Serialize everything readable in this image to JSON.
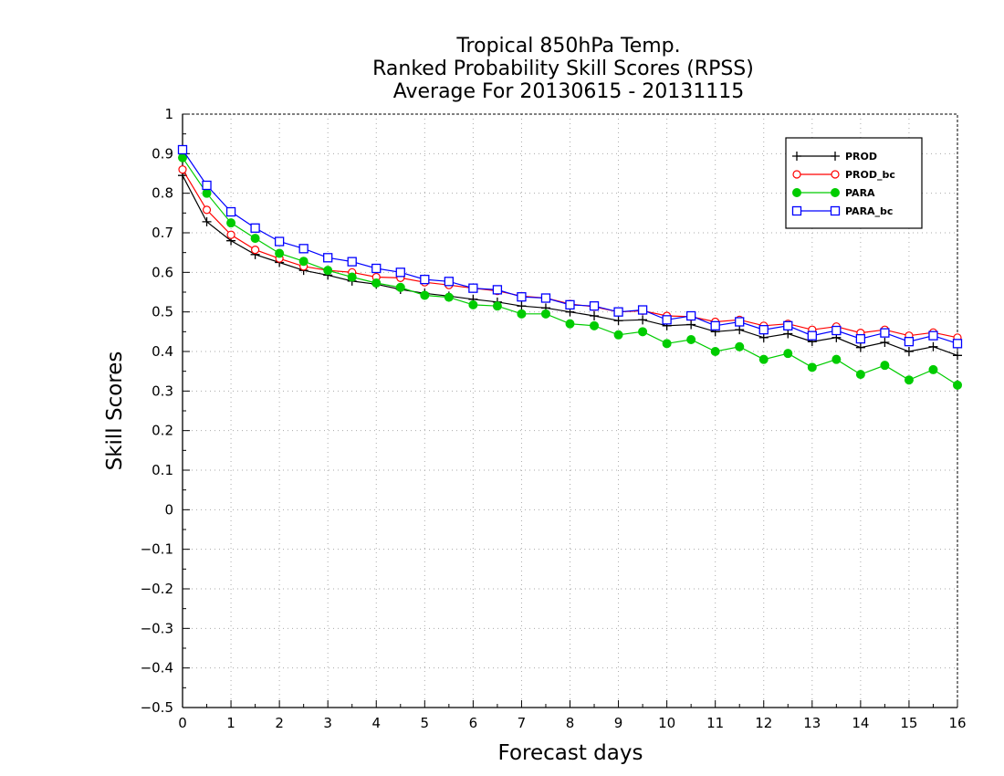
{
  "chart_data": {
    "type": "line",
    "title_lines": [
      "Tropical 850hPa Temp.",
      "Ranked Probability Skill Scores (RPSS)",
      "Average For 20130615 - 20131115"
    ],
    "xlabel": "Forecast days",
    "ylabel": "Skill Scores",
    "xlim": [
      0,
      16
    ],
    "ylim": [
      -0.5,
      1
    ],
    "x_ticks": [
      0,
      1,
      2,
      3,
      4,
      5,
      6,
      7,
      8,
      9,
      10,
      11,
      12,
      13,
      14,
      15,
      16
    ],
    "y_ticks": [
      -0.5,
      -0.4,
      -0.3,
      -0.2,
      -0.1,
      0,
      0.1,
      0.2,
      0.3,
      0.4,
      0.5,
      0.6,
      0.7,
      0.8,
      0.9,
      1
    ],
    "x_tick_labels": [
      "0",
      "1",
      "2",
      "3",
      "4",
      "5",
      "6",
      "7",
      "8",
      "9",
      "10",
      "11",
      "12",
      "13",
      "14",
      "15",
      "16"
    ],
    "y_tick_labels": [
      "−0.5",
      "−0.4",
      "−0.3",
      "−0.2",
      "−0.1",
      "0",
      "0.1",
      "0.2",
      "0.3",
      "0.4",
      "0.5",
      "0.6",
      "0.7",
      "0.8",
      "0.9",
      "1"
    ],
    "grid": true,
    "legend_position": "top-right",
    "x": [
      0,
      0.5,
      1,
      1.5,
      2,
      2.5,
      3,
      3.5,
      4,
      4.5,
      5,
      5.5,
      6,
      6.5,
      7,
      7.5,
      8,
      8.5,
      9,
      9.5,
      10,
      10.5,
      11,
      11.5,
      12,
      12.5,
      13,
      13.5,
      14,
      14.5,
      15,
      15.5,
      16
    ],
    "series": [
      {
        "name": "PROD",
        "color": "#000000",
        "marker": "plus",
        "values": [
          0.845,
          0.728,
          0.68,
          0.645,
          0.625,
          0.605,
          0.593,
          0.578,
          0.57,
          0.557,
          0.547,
          0.54,
          0.532,
          0.525,
          0.515,
          0.51,
          0.5,
          0.49,
          0.478,
          0.48,
          0.465,
          0.468,
          0.45,
          0.455,
          0.435,
          0.445,
          0.425,
          0.435,
          0.41,
          0.423,
          0.4,
          0.412,
          0.39
        ]
      },
      {
        "name": "PROD_bc",
        "color": "#ff0000",
        "marker": "circle-open",
        "values": [
          0.86,
          0.758,
          0.695,
          0.657,
          0.635,
          0.615,
          0.605,
          0.6,
          0.588,
          0.586,
          0.575,
          0.568,
          0.56,
          0.553,
          0.54,
          0.535,
          0.52,
          0.513,
          0.5,
          0.503,
          0.49,
          0.488,
          0.475,
          0.48,
          0.465,
          0.47,
          0.455,
          0.463,
          0.447,
          0.455,
          0.44,
          0.448,
          0.435
        ]
      },
      {
        "name": "PARA",
        "color": "#00cc00",
        "marker": "circle-filled",
        "values": [
          0.89,
          0.8,
          0.725,
          0.686,
          0.648,
          0.628,
          0.605,
          0.588,
          0.573,
          0.562,
          0.542,
          0.537,
          0.518,
          0.515,
          0.495,
          0.495,
          0.47,
          0.465,
          0.442,
          0.45,
          0.42,
          0.43,
          0.4,
          0.412,
          0.38,
          0.395,
          0.36,
          0.38,
          0.342,
          0.365,
          0.328,
          0.354,
          0.315
        ]
      },
      {
        "name": "PARA_bc",
        "color": "#0000ff",
        "marker": "square-open",
        "values": [
          0.91,
          0.82,
          0.753,
          0.712,
          0.678,
          0.66,
          0.637,
          0.627,
          0.61,
          0.6,
          0.582,
          0.577,
          0.56,
          0.556,
          0.538,
          0.535,
          0.518,
          0.515,
          0.5,
          0.505,
          0.48,
          0.49,
          0.465,
          0.475,
          0.455,
          0.465,
          0.44,
          0.453,
          0.432,
          0.447,
          0.425,
          0.44,
          0.42
        ]
      }
    ]
  }
}
